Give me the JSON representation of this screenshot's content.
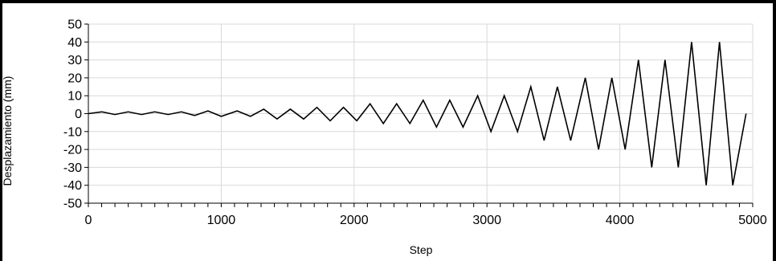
{
  "chart_data": {
    "type": "line",
    "title": "",
    "xlabel": "Step",
    "ylabel": "Desplazamiento  (mm)",
    "xlim": [
      0,
      5000
    ],
    "ylim": [
      -50,
      50
    ],
    "x_ticks": [
      0,
      1000,
      2000,
      3000,
      4000,
      5000
    ],
    "y_ticks": [
      50,
      40,
      30,
      20,
      10,
      0,
      -10,
      -20,
      -30,
      -40,
      -50
    ],
    "x_tick_labels": [
      "0",
      "1000",
      "2000",
      "3000",
      "4000",
      "5000"
    ],
    "y_tick_labels": [
      "50",
      "40",
      "30",
      "20",
      "10",
      "0",
      "-10",
      "-20",
      "-30",
      "-40",
      "-50"
    ],
    "grid": true,
    "legend": "none",
    "line_color": "#000000",
    "grid_color": "#d9d9d9",
    "series": [
      {
        "x": [
          0,
          100,
          200,
          300,
          400,
          500,
          600,
          700,
          800,
          900,
          1000,
          1120,
          1220,
          1320,
          1420,
          1520,
          1620,
          1720,
          1820,
          1920,
          2020,
          2120,
          2220,
          2320,
          2420,
          2520,
          2620,
          2720,
          2820,
          2930,
          3030,
          3130,
          3230,
          3330,
          3430,
          3530,
          3630,
          3740,
          3840,
          3940,
          4040,
          4140,
          4240,
          4340,
          4440,
          4540,
          4650,
          4750,
          4850,
          4950
        ],
        "y": [
          0,
          1,
          -0.5,
          1,
          -0.5,
          1,
          -0.5,
          1,
          -1,
          1.5,
          -1.5,
          1.5,
          -1.5,
          2.5,
          -3,
          2.5,
          -3,
          3.5,
          -4,
          3.5,
          -4,
          5.5,
          -5.5,
          5.5,
          -5.5,
          7.5,
          -7.5,
          7.5,
          -7.5,
          10,
          -10,
          10,
          -10,
          15,
          -15,
          15,
          -15,
          20,
          -20,
          20,
          -20,
          30,
          -30,
          30,
          -30,
          40,
          -40,
          40,
          -40,
          0
        ]
      }
    ]
  }
}
